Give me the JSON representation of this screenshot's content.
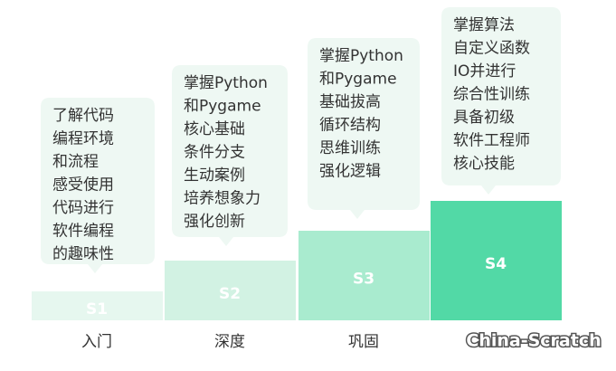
{
  "steps": [
    {
      "label": "S1",
      "name": "入门",
      "lines": [
        "了解代码",
        "编程环境",
        "和流程",
        "感受使用",
        "代码进行",
        "软件编程",
        "的趣味性"
      ]
    },
    {
      "label": "S2",
      "name": "深度",
      "lines": [
        "掌握Python",
        "和Pygame",
        "核心基础",
        "条件分支",
        "生动案例",
        "培养想象力",
        "强化创新"
      ]
    },
    {
      "label": "S3",
      "name": "巩固",
      "lines": [
        "掌握Python",
        "和Pygame",
        "基础拔高",
        "循环结构",
        "思维训练",
        "强化逻辑"
      ]
    },
    {
      "label": "S4",
      "lines": [
        "掌握算法",
        "自定义函数",
        "IO并进行",
        "综合性训练",
        "具备初级",
        "软件工程师",
        "核心技能"
      ]
    }
  ],
  "watermark": "China-Scratch"
}
